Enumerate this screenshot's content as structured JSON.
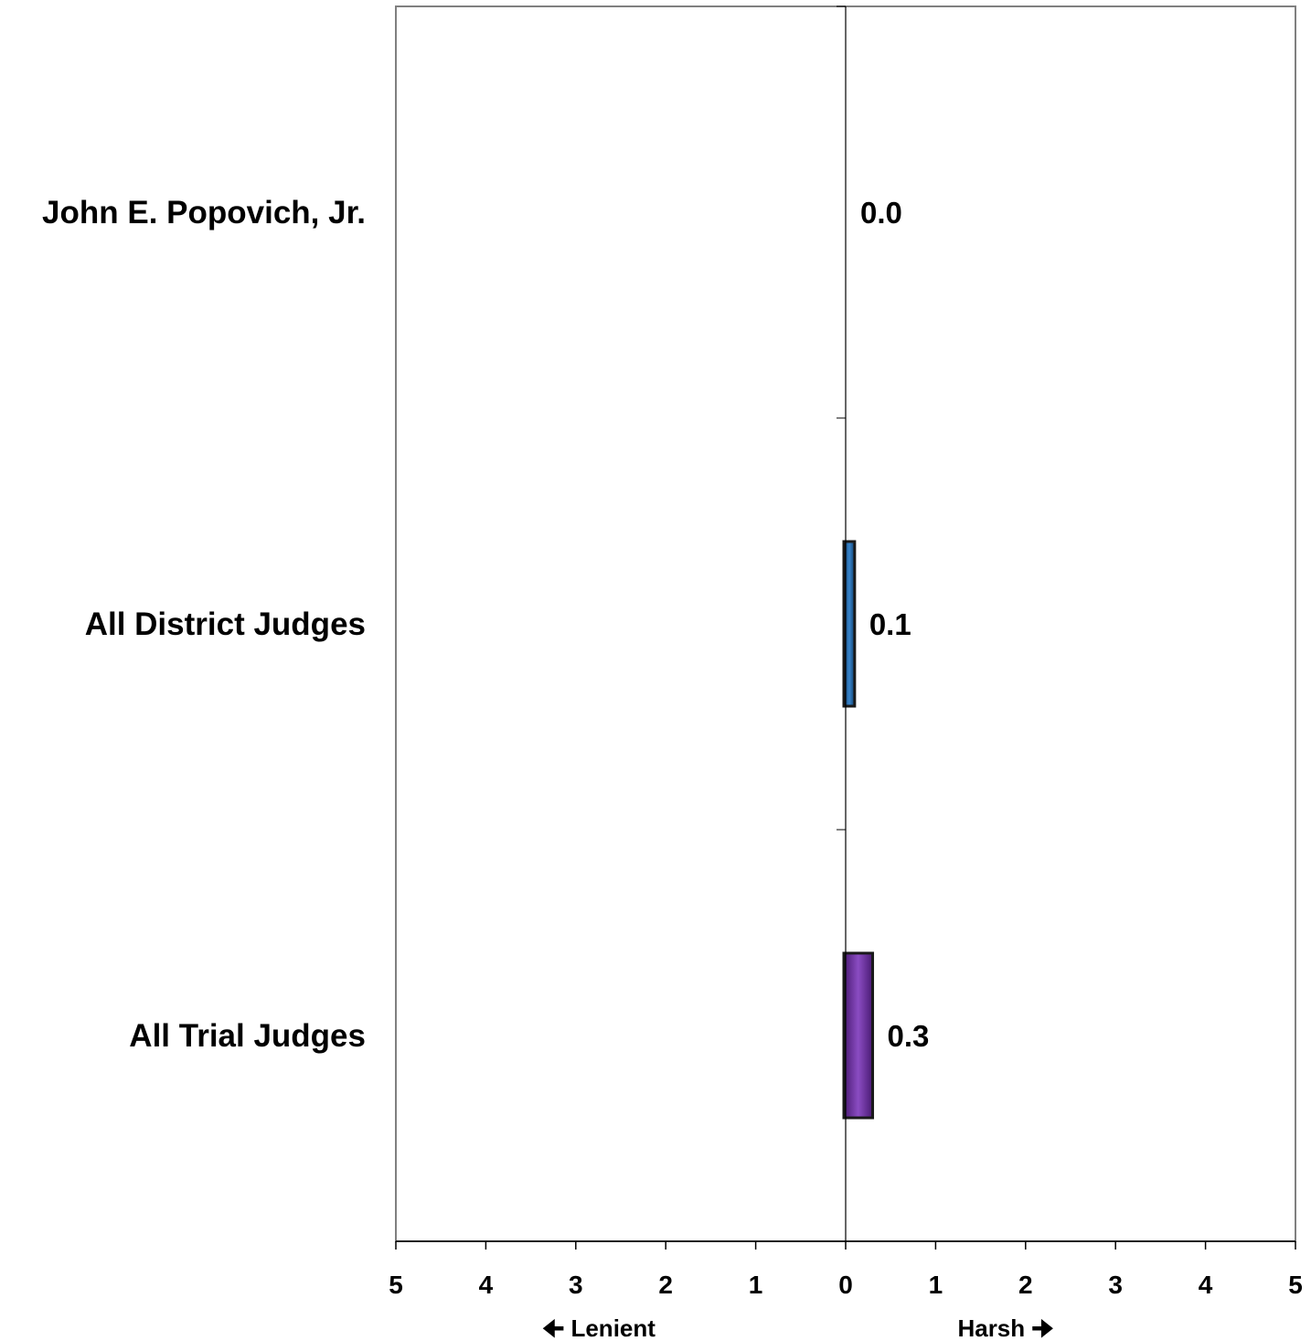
{
  "chart_data": {
    "type": "bar",
    "orientation": "horizontal",
    "categories": [
      "John E. Popovich, Jr.",
      "All District Judges",
      "All Trial Judges"
    ],
    "values": [
      0.0,
      0.1,
      0.3
    ],
    "value_labels": [
      "0.0",
      "0.1",
      "0.3"
    ],
    "bar_colors": [
      "#1f5fa0",
      "#1f5fa0",
      "#6a2d9a"
    ],
    "xlim": [
      -5,
      5
    ],
    "x_tick_values": [
      -5,
      -4,
      -3,
      -2,
      -1,
      0,
      1,
      2,
      3,
      4,
      5
    ],
    "x_tick_labels": [
      "5",
      "4",
      "3",
      "2",
      "1",
      "0",
      "1",
      "2",
      "3",
      "4",
      "5"
    ],
    "direction_labels": {
      "negative": "Lenient",
      "positive": "Harsh"
    },
    "title": "",
    "xlabel": "",
    "ylabel": "",
    "grid": false,
    "legend": "none"
  }
}
